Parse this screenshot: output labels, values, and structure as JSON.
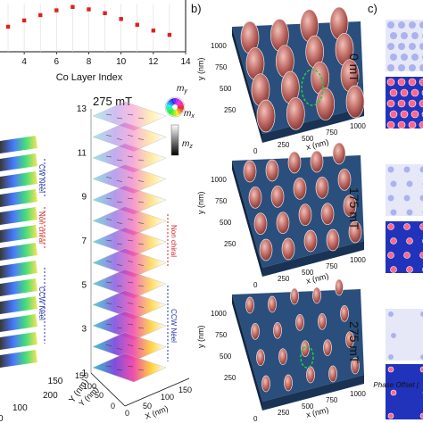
{
  "panel_labels": {
    "b": "b)",
    "c": "c)"
  },
  "chart_data": {
    "type": "scatter",
    "title": "",
    "xlabel": "Co Layer Index",
    "ylabel": "",
    "xlim": [
      2.5,
      14
    ],
    "x_ticks": [
      "4",
      "6",
      "8",
      "10",
      "12",
      "14"
    ],
    "x": [
      3,
      4,
      5,
      6,
      7,
      8,
      9,
      10,
      11,
      12,
      13
    ],
    "values": [
      0.52,
      0.65,
      0.76,
      0.86,
      0.93,
      0.88,
      0.8,
      0.68,
      0.56,
      0.44,
      0.35
    ],
    "color": "#e02020"
  },
  "left_stack": {
    "field": "275 mT",
    "y_ticks": [
      "13",
      "11",
      "9",
      "7",
      "5",
      "3",
      "1"
    ],
    "ann_cw": "CW Néel",
    "ann_nonchiral": "Non chiral",
    "ann_ccw": "CCW Néel",
    "y_axis_label": "Y (nm)",
    "x_axis_label": "X (nm)",
    "left_x_ticks": [
      "200",
      "100",
      "0"
    ],
    "right_y_ticks": [
      "150",
      "100",
      "50",
      "0"
    ],
    "right_x_ticks": [
      "0",
      "50",
      "100",
      "150"
    ]
  },
  "colorwheel": {
    "my": "m",
    "my_sub": "y",
    "mx": "m",
    "mx_sub": "x",
    "mz": "m",
    "mz_sub": "z"
  },
  "panel_b": {
    "fields": [
      "0 mT",
      "175 mT",
      "275 mT"
    ],
    "y_axis": "y (nm)",
    "x_axis": "x (nm)",
    "y_ticks": [
      "1000",
      "750",
      "500",
      "250"
    ],
    "x_ticks": [
      "0",
      "250",
      "500",
      "750",
      "1000"
    ]
  },
  "panel_c": {
    "caption": "Phase Offset ("
  },
  "colors": {
    "domain": "#b8625c",
    "floor": "#2a4f7c",
    "ring": "#22cc44",
    "c_blue": "#2233bb"
  }
}
